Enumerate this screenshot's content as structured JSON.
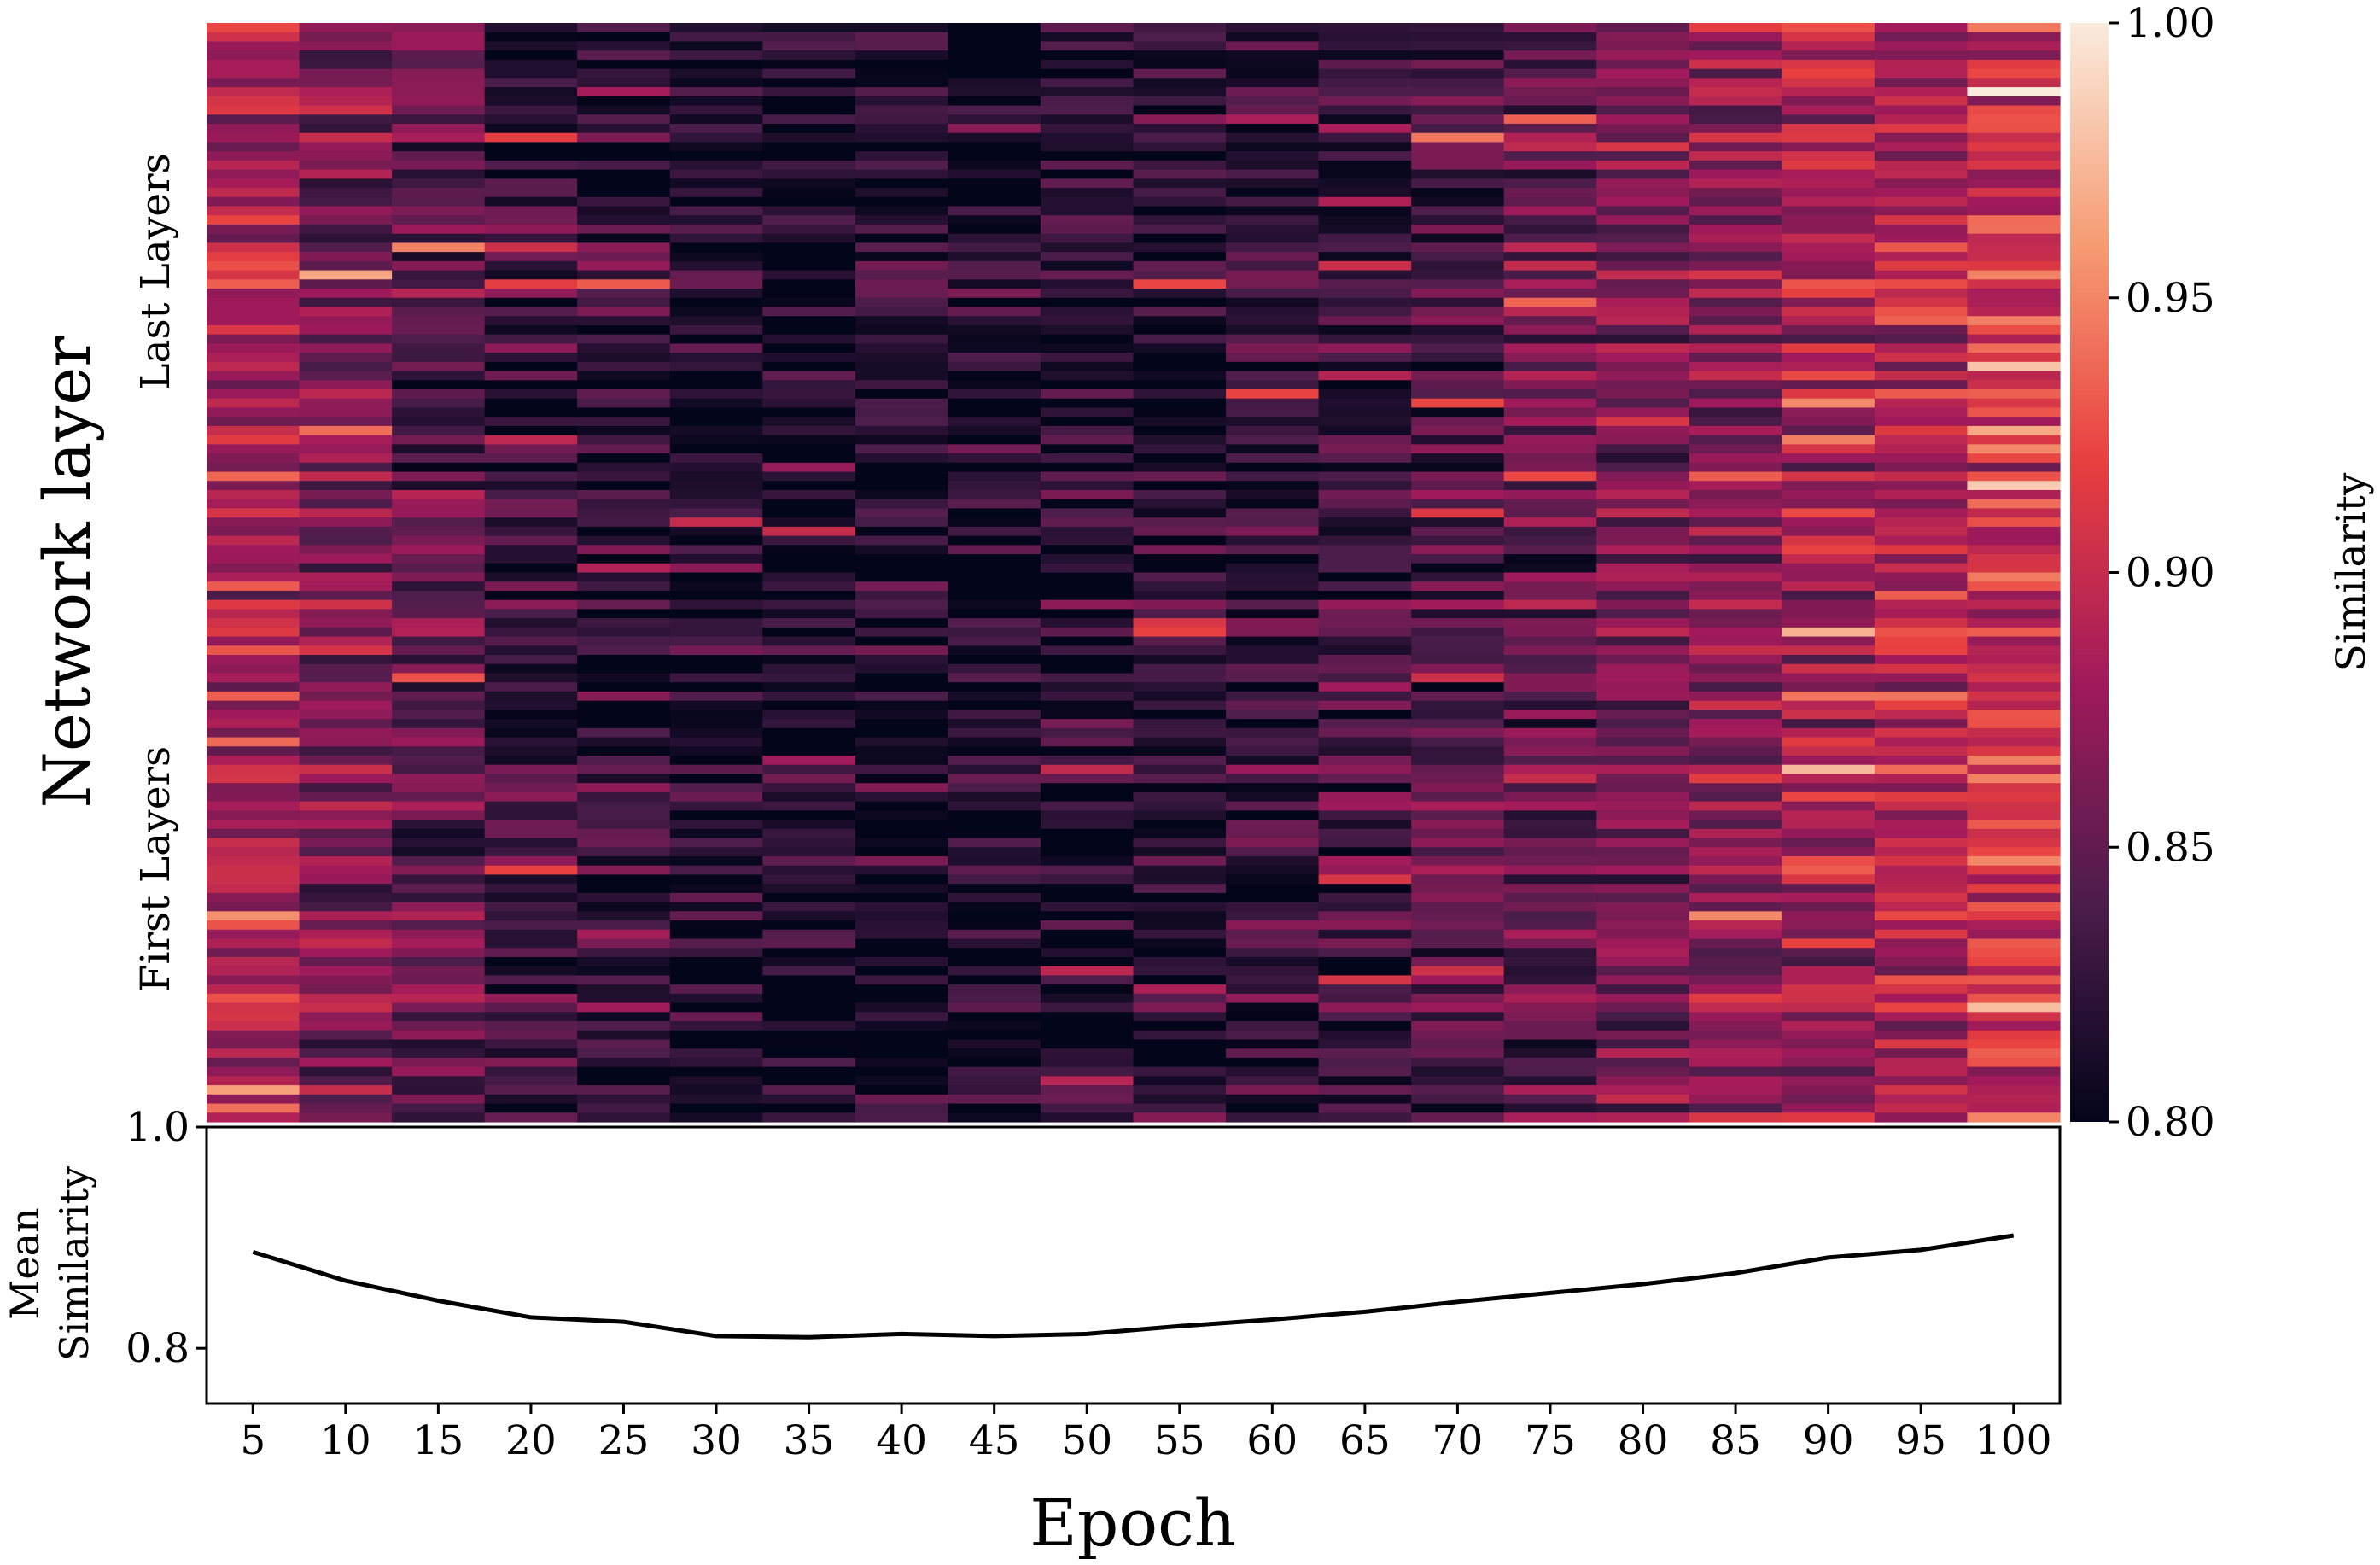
{
  "chart_data": [
    {
      "type": "heatmap",
      "name": "layer-similarity-heatmap",
      "ylabel": "Network layer",
      "y_section_labels": [
        "Last Layers",
        "First Layers"
      ],
      "x": [
        5,
        10,
        15,
        20,
        25,
        30,
        35,
        40,
        45,
        50,
        55,
        60,
        65,
        70,
        75,
        80,
        85,
        90,
        95,
        100
      ],
      "num_layers": 120,
      "layer_order": "first layers at bottom, last layers at top",
      "mean_similarity_per_epoch": [
        0.887,
        0.861,
        0.843,
        0.828,
        0.824,
        0.811,
        0.81,
        0.813,
        0.811,
        0.813,
        0.82,
        0.826,
        0.833,
        0.842,
        0.85,
        0.858,
        0.868,
        0.882,
        0.889,
        0.902
      ],
      "note": "Individual cell values are estimated per epoch column; the colour scale shows similarity from 0.80 (dark) to 1.00 (light)."
    },
    {
      "type": "colorbar",
      "label": "Similarity",
      "range": [
        0.8,
        1.0
      ],
      "ticks": [
        "0.80",
        "0.85",
        "0.90",
        "0.95",
        "1.00"
      ],
      "colors": [
        "#03051a",
        "#4c1d4b",
        "#a11a5b",
        "#e83f3f",
        "#f69c73",
        "#faebdd"
      ]
    },
    {
      "type": "line",
      "name": "mean-similarity-line",
      "xlabel": "Epoch",
      "ylabel": [
        "Mean",
        "Similarity"
      ],
      "x": [
        5,
        10,
        15,
        20,
        25,
        30,
        35,
        40,
        45,
        50,
        55,
        60,
        65,
        70,
        75,
        80,
        85,
        90,
        95,
        100
      ],
      "y": [
        0.887,
        0.861,
        0.843,
        0.828,
        0.824,
        0.811,
        0.81,
        0.813,
        0.811,
        0.813,
        0.82,
        0.826,
        0.833,
        0.842,
        0.85,
        0.858,
        0.868,
        0.882,
        0.889,
        0.902
      ],
      "xticks": [
        "5",
        "10",
        "15",
        "20",
        "25",
        "30",
        "35",
        "40",
        "45",
        "50",
        "55",
        "60",
        "65",
        "70",
        "75",
        "80",
        "85",
        "90",
        "95",
        "100"
      ],
      "yticks": [
        "0.8",
        "1.0"
      ],
      "ylim": [
        0.75,
        1.0
      ],
      "line_color": "#000000"
    }
  ]
}
